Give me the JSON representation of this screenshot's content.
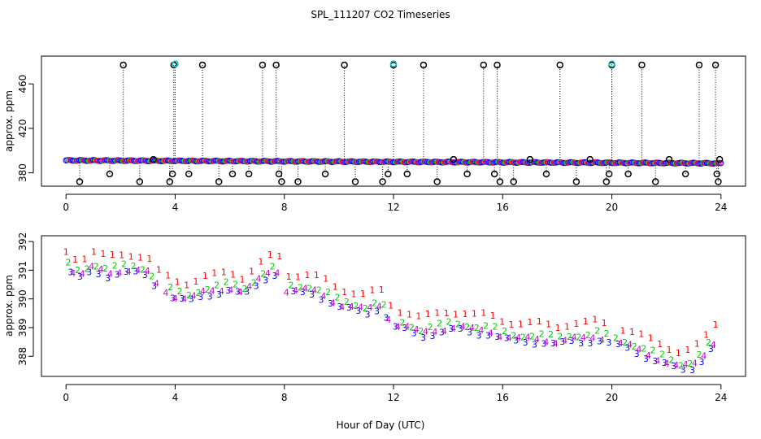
{
  "title": "SPL_111207  CO2 Timeseries",
  "xlabel": "Hour of Day (UTC)",
  "colors": {
    "outlier": "#000000",
    "flagged": "#00cccc",
    "series_1": "#ff0000",
    "series_2": "#00cc00",
    "series_3": "#0000ff",
    "series_4": "#cc00cc",
    "spike": "#000000"
  },
  "chart_data": [
    {
      "type": "scatter",
      "panel": "top",
      "ylabel": "approx. ppm",
      "xlim": [
        -0.9,
        24.9
      ],
      "ylim": [
        368,
        485
      ],
      "xticks": [
        0,
        4,
        8,
        12,
        16,
        20,
        24
      ],
      "yticks": [
        380,
        420,
        460
      ],
      "baseline": {
        "start": 391.2,
        "end": 388.6
      },
      "outliers": [
        {
          "x": 0.5,
          "y": 372
        },
        {
          "x": 1.6,
          "y": 379
        },
        {
          "x": 2.1,
          "y": 477
        },
        {
          "x": 2.7,
          "y": 372
        },
        {
          "x": 3.2,
          "y": 392
        },
        {
          "x": 3.8,
          "y": 372
        },
        {
          "x": 3.9,
          "y": 379
        },
        {
          "x": 3.95,
          "y": 477
        },
        {
          "x": 4.5,
          "y": 379
        },
        {
          "x": 5.0,
          "y": 477
        },
        {
          "x": 5.6,
          "y": 372
        },
        {
          "x": 6.1,
          "y": 379
        },
        {
          "x": 6.7,
          "y": 379
        },
        {
          "x": 7.2,
          "y": 477
        },
        {
          "x": 7.7,
          "y": 477
        },
        {
          "x": 7.8,
          "y": 379
        },
        {
          "x": 7.9,
          "y": 372
        },
        {
          "x": 8.5,
          "y": 372
        },
        {
          "x": 9.5,
          "y": 379
        },
        {
          "x": 10.2,
          "y": 477
        },
        {
          "x": 10.6,
          "y": 372
        },
        {
          "x": 11.6,
          "y": 372
        },
        {
          "x": 11.8,
          "y": 379
        },
        {
          "x": 12.0,
          "y": 477
        },
        {
          "x": 12.5,
          "y": 379
        },
        {
          "x": 13.1,
          "y": 477
        },
        {
          "x": 13.6,
          "y": 372
        },
        {
          "x": 14.2,
          "y": 392
        },
        {
          "x": 14.7,
          "y": 379
        },
        {
          "x": 15.3,
          "y": 477
        },
        {
          "x": 15.7,
          "y": 379
        },
        {
          "x": 15.8,
          "y": 477
        },
        {
          "x": 15.9,
          "y": 372
        },
        {
          "x": 16.4,
          "y": 372
        },
        {
          "x": 17.0,
          "y": 392
        },
        {
          "x": 17.6,
          "y": 379
        },
        {
          "x": 18.1,
          "y": 477
        },
        {
          "x": 18.7,
          "y": 372
        },
        {
          "x": 19.2,
          "y": 392
        },
        {
          "x": 19.8,
          "y": 372
        },
        {
          "x": 19.9,
          "y": 379
        },
        {
          "x": 20.0,
          "y": 477
        },
        {
          "x": 20.6,
          "y": 379
        },
        {
          "x": 21.1,
          "y": 477
        },
        {
          "x": 21.6,
          "y": 372
        },
        {
          "x": 22.1,
          "y": 392
        },
        {
          "x": 22.7,
          "y": 379
        },
        {
          "x": 23.2,
          "y": 477
        },
        {
          "x": 23.8,
          "y": 477
        },
        {
          "x": 23.85,
          "y": 379
        },
        {
          "x": 23.9,
          "y": 372
        },
        {
          "x": 23.95,
          "y": 392
        }
      ],
      "flagged": [
        {
          "x": 4.0,
          "y": 478
        },
        {
          "x": 12.0,
          "y": 478
        },
        {
          "x": 20.0,
          "y": 478
        }
      ]
    },
    {
      "type": "scatter",
      "panel": "bottom",
      "ylabel": "approx. ppm",
      "xlim": [
        -0.9,
        24.9
      ],
      "ylim": [
        387.3,
        392.2
      ],
      "xticks": [
        0,
        4,
        8,
        12,
        16,
        20,
        24
      ],
      "yticks": [
        388,
        389,
        390,
        391,
        392
      ],
      "markers": [
        "1",
        "2",
        "3",
        "4"
      ],
      "series": [
        {
          "name": "1",
          "offset": 0.55
        },
        {
          "name": "2",
          "offset": 0.15
        },
        {
          "name": "3",
          "offset": -0.1
        },
        {
          "name": "4",
          "offset": 0.0
        }
      ],
      "trend": [
        [
          0.0,
          391.1
        ],
        [
          0.5,
          390.8
        ],
        [
          1.0,
          391.1
        ],
        [
          1.5,
          390.9
        ],
        [
          2.0,
          391.0
        ],
        [
          2.5,
          391.0
        ],
        [
          3.0,
          390.9
        ],
        [
          3.4,
          390.4
        ],
        [
          4.0,
          390.1
        ],
        [
          4.5,
          390.0
        ],
        [
          5.0,
          390.2
        ],
        [
          5.5,
          390.3
        ],
        [
          6.0,
          390.4
        ],
        [
          6.5,
          390.2
        ],
        [
          7.0,
          390.6
        ],
        [
          7.4,
          390.9
        ],
        [
          7.8,
          391.0
        ],
        [
          8.0,
          390.3
        ],
        [
          8.5,
          390.3
        ],
        [
          9.0,
          390.3
        ],
        [
          9.5,
          390.1
        ],
        [
          10.0,
          389.8
        ],
        [
          10.5,
          389.7
        ],
        [
          11.0,
          389.6
        ],
        [
          11.5,
          389.8
        ],
        [
          12.0,
          389.1
        ],
        [
          12.5,
          389.0
        ],
        [
          13.0,
          388.8
        ],
        [
          13.5,
          388.9
        ],
        [
          14.0,
          389.0
        ],
        [
          14.5,
          389.0
        ],
        [
          15.0,
          388.9
        ],
        [
          15.5,
          388.9
        ],
        [
          16.0,
          388.7
        ],
        [
          16.5,
          388.6
        ],
        [
          17.0,
          388.6
        ],
        [
          17.5,
          388.6
        ],
        [
          18.0,
          388.5
        ],
        [
          18.5,
          388.6
        ],
        [
          19.0,
          388.6
        ],
        [
          19.5,
          388.7
        ],
        [
          20.0,
          388.5
        ],
        [
          20.5,
          388.4
        ],
        [
          21.0,
          388.2
        ],
        [
          21.5,
          388.0
        ],
        [
          22.0,
          387.8
        ],
        [
          22.5,
          387.6
        ],
        [
          23.0,
          387.7
        ],
        [
          23.5,
          388.2
        ],
        [
          23.8,
          388.6
        ]
      ],
      "gaps": [
        [
          3.4,
          3.6
        ],
        [
          7.9,
          8.0
        ],
        [
          11.9,
          12.05
        ],
        [
          19.9,
          20.1
        ]
      ]
    }
  ]
}
